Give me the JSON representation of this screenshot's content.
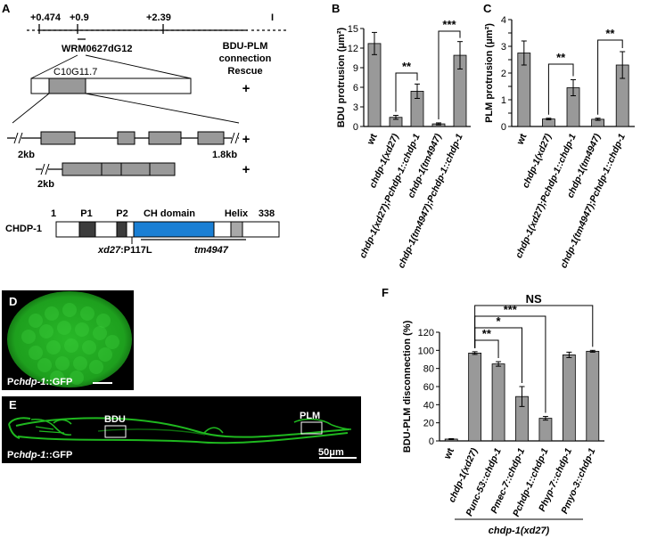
{
  "panelA": {
    "label": "A",
    "pos1": "+0.474",
    "pos2": "+0.9",
    "pos3": "+2.39",
    "end_mark": "I",
    "cosmid": "WRM0627dG12",
    "gene": "C10G11.7",
    "rescue_header_1": "BDU-PLM",
    "rescue_header_2": "connection",
    "rescue_header_3": "Rescue",
    "rescue": [
      "+",
      "+",
      "+"
    ],
    "left_2kb_1": "2kb",
    "right_1_8kb": "1.8kb",
    "left_2kb_2": "2kb",
    "protein": "CHDP-1",
    "aa_start": "1",
    "aa_end": "338",
    "p1": "P1",
    "p2": "P2",
    "ch_domain": "CH domain",
    "helix": "Helix",
    "allele_xd27": "xd27",
    "allele_xd27_change": ":P117L",
    "allele_tm4947": "tm4947",
    "colors": {
      "ch_domain": "#1a7fd4",
      "motif": "#3c3c3c",
      "exon": "#999999",
      "helix": "#a8a8a8"
    }
  },
  "panelB": {
    "label": "B"
  },
  "panelC": {
    "label": "C"
  },
  "panelD": {
    "label": "D",
    "caption_p": "P",
    "caption_gene": "chdp-1",
    "caption_rest": "::GFP"
  },
  "panelE": {
    "label": "E",
    "caption_p": "P",
    "caption_gene": "chdp-1",
    "caption_rest": "::GFP",
    "box1": "BDU",
    "box2": "PLM",
    "scale": "50μm"
  },
  "panelF": {
    "label": "F",
    "ns": "NS",
    "group_label": "chdp-1(xd27)"
  },
  "chart_data": [
    {
      "id": "B",
      "type": "bar",
      "ylabel": "BDU protrusion (μm²)",
      "ylim": [
        0,
        15
      ],
      "yticks": [
        0,
        3,
        6,
        9,
        12,
        15
      ],
      "categories": [
        "wt",
        "chdp-1(xd27)",
        "chdp-1(xd27);Pchdp-1::chdp-1",
        "chdp-1(tm4947)",
        "chdp-1(tm4947);Pchdp-1::chdp-1"
      ],
      "values": [
        12.7,
        1.4,
        5.4,
        0.4,
        10.9
      ],
      "errors": [
        1.7,
        0.3,
        1.1,
        0.15,
        2.1
      ],
      "significance": [
        {
          "from": 1,
          "to": 2,
          "label": "**"
        },
        {
          "from": 3,
          "to": 4,
          "label": "***"
        }
      ],
      "bar_color": "#999999"
    },
    {
      "id": "C",
      "type": "bar",
      "ylabel": "PLM protrusion (μm²)",
      "ylim": [
        0,
        4
      ],
      "yticks": [
        0,
        0.5,
        1,
        1.5,
        2,
        2.5,
        3,
        3.5,
        4
      ],
      "tick_labels": [
        "0",
        "",
        "1",
        "",
        "2",
        "",
        "3",
        "",
        "4"
      ],
      "categories": [
        "wt",
        "chdp-1(xd27)",
        "chdp-1(xd27);Pchdp-1::chdp-1",
        "chdp-1(tm4947)",
        "chdp-1(tm4947);Pchdp-1::chdp-1"
      ],
      "values": [
        2.75,
        0.28,
        1.45,
        0.27,
        2.3
      ],
      "errors": [
        0.45,
        0.03,
        0.3,
        0.04,
        0.5
      ],
      "significance": [
        {
          "from": 1,
          "to": 2,
          "label": "**"
        },
        {
          "from": 3,
          "to": 4,
          "label": "**"
        }
      ],
      "bar_color": "#999999"
    },
    {
      "id": "F",
      "type": "bar",
      "ylabel": "BDU-PLM disconnection (%)",
      "ylim": [
        0,
        120
      ],
      "yticks": [
        0,
        20,
        40,
        60,
        80,
        100,
        120
      ],
      "categories": [
        "wt",
        "chdp-1(xd27)",
        "Punc-53::chdp-1",
        "Pmec-7::chdp-1",
        "Pchdp-1::chdp-1",
        "Phyp-7::chdp-1",
        "Pmyo-3::chdp-1"
      ],
      "values": [
        2,
        97,
        85,
        49,
        25,
        95,
        99
      ],
      "errors": [
        0.5,
        1.5,
        2.5,
        11,
        2,
        3,
        1
      ],
      "significance": [
        {
          "from": 1,
          "to": 2,
          "label": "**"
        },
        {
          "from": 1,
          "to": 3,
          "label": "*"
        },
        {
          "from": 1,
          "to": 4,
          "label": "***"
        },
        {
          "from": 1,
          "to": 6,
          "label": "NS"
        }
      ],
      "bar_color": "#999999"
    }
  ]
}
